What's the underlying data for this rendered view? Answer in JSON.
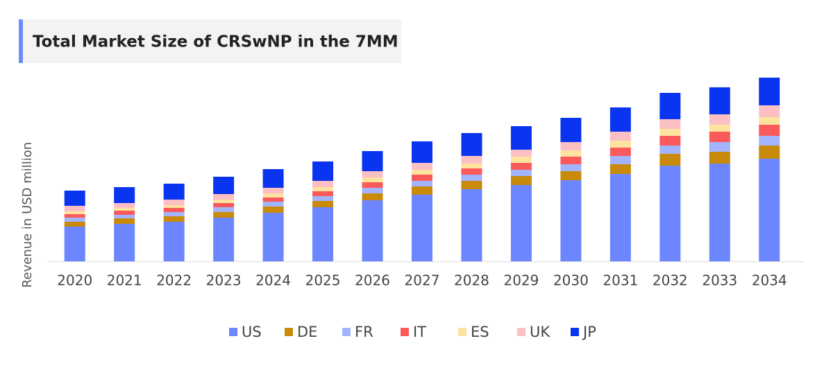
{
  "chart_data": {
    "type": "stacked-bar",
    "title": "Total Market Size of CRSwNP in the 7MM",
    "y_label": "Revenue in USD million",
    "categories": [
      "2020",
      "2021",
      "2022",
      "2023",
      "2024",
      "2025",
      "2026",
      "2027",
      "2028",
      "2029",
      "2030",
      "2031",
      "2032",
      "2033",
      "2034"
    ],
    "series": [
      {
        "name": "US",
        "color": "#6b86ff",
        "values": [
          50,
          54,
          57,
          63,
          70,
          78,
          88,
          96,
          104,
          110,
          117,
          126,
          138,
          141,
          148
        ]
      },
      {
        "name": "DE",
        "color": "#c98a0a",
        "values": [
          7,
          8,
          8,
          8,
          9,
          9,
          10,
          12,
          12,
          13,
          13,
          14,
          17,
          17,
          19
        ]
      },
      {
        "name": "FR",
        "color": "#a3b4ff",
        "values": [
          6,
          5,
          6,
          7,
          7,
          7,
          8,
          8,
          9,
          9,
          10,
          12,
          12,
          14,
          14
        ]
      },
      {
        "name": "IT",
        "color": "#fb5a5a",
        "values": [
          5,
          6,
          6,
          6,
          6,
          7,
          8,
          9,
          9,
          10,
          11,
          12,
          14,
          15,
          16
        ]
      },
      {
        "name": "ES",
        "color": "#fde3a0",
        "values": [
          4,
          4,
          4,
          5,
          6,
          6,
          7,
          7,
          7,
          9,
          9,
          10,
          10,
          10,
          11
        ]
      },
      {
        "name": "UK",
        "color": "#fcc0c4",
        "values": [
          8,
          7,
          8,
          8,
          8,
          9,
          9,
          10,
          11,
          10,
          12,
          13,
          14,
          15,
          17
        ]
      },
      {
        "name": "JP",
        "color": "#0a35f0",
        "values": [
          22,
          23,
          23,
          25,
          27,
          28,
          29,
          31,
          33,
          34,
          35,
          35,
          38,
          39,
          40
        ]
      }
    ],
    "ylim": [
      0,
      272
    ]
  }
}
